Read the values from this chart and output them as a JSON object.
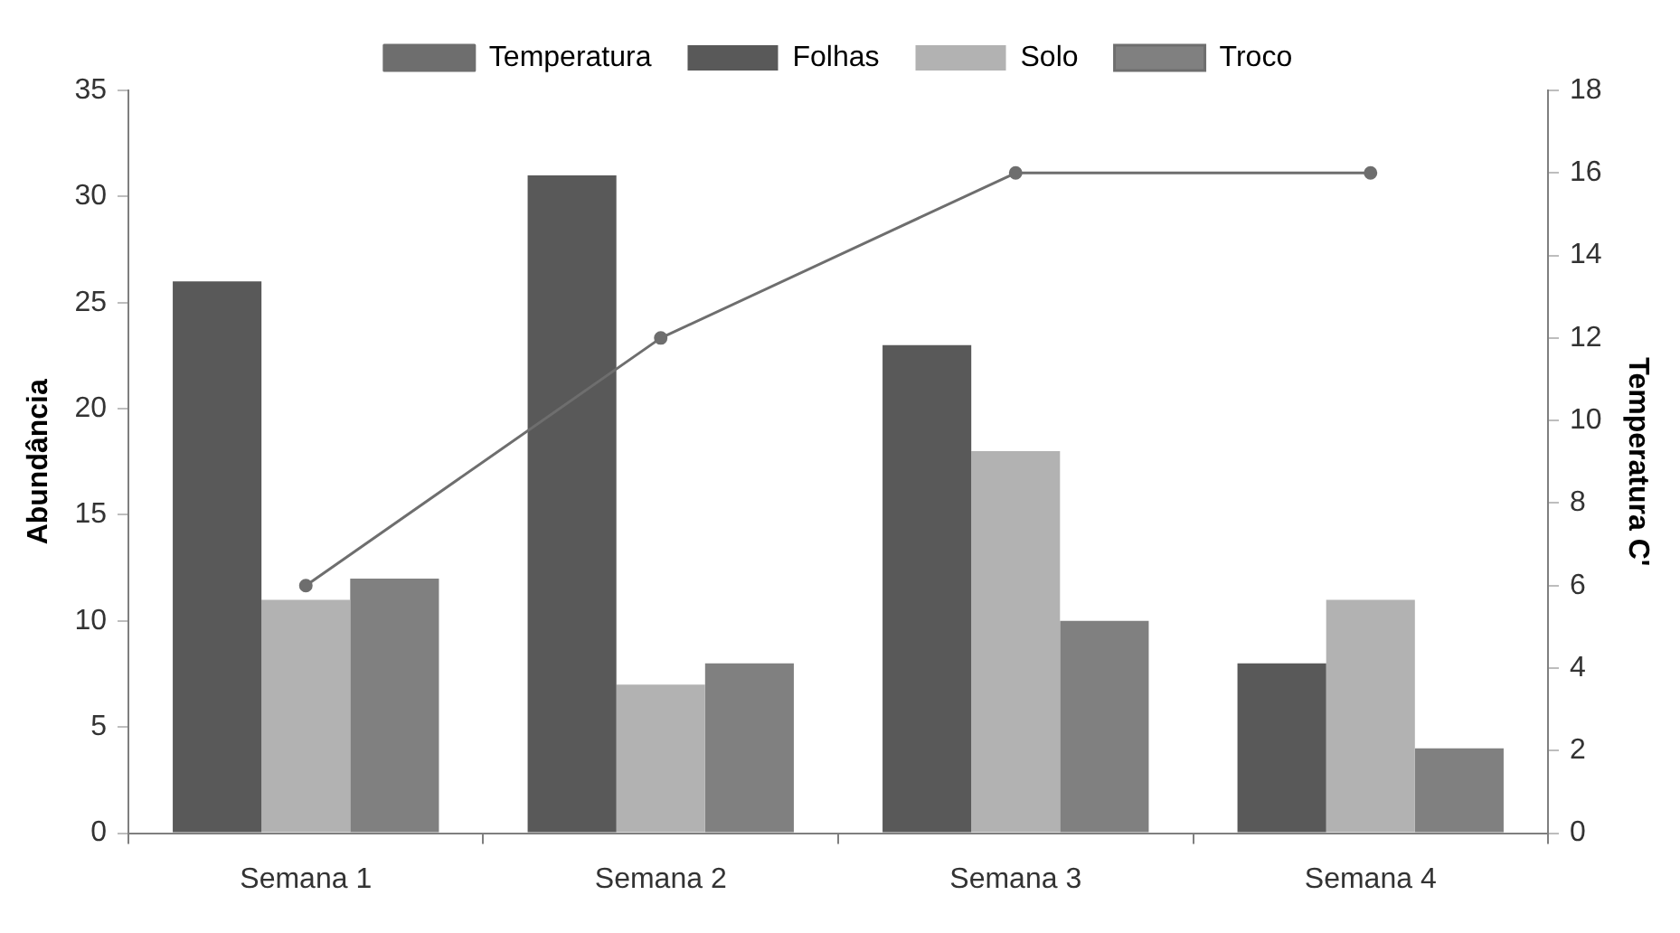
{
  "chart_data": {
    "type": "bar",
    "categories": [
      "Semana 1",
      "Semana 2",
      "Semana 3",
      "Semana 4"
    ],
    "ylabel": "Abundância",
    "y2label": "Temperatura C'",
    "ylim": [
      0,
      35
    ],
    "yticks": [
      0,
      5,
      10,
      15,
      20,
      25,
      30,
      35
    ],
    "y2lim": [
      0,
      18
    ],
    "y2ticks": [
      0,
      2,
      4,
      6,
      8,
      10,
      12,
      14,
      16,
      18
    ],
    "grid": false,
    "legend": "top",
    "marker": "circle",
    "line_style": "solid",
    "series": [
      {
        "name": "Folhas",
        "color": "#595959",
        "values": [
          26,
          31,
          23,
          8
        ]
      },
      {
        "name": "Solo",
        "color": "#b2b2b2",
        "values": [
          11,
          7,
          18,
          11
        ]
      },
      {
        "name": "Troco",
        "color": "#808080",
        "values": [
          12,
          8,
          10,
          4
        ]
      },
      {
        "name": "Temperatura",
        "type": "line",
        "axis": "y2",
        "color": "#6e6e6e",
        "values": [
          6,
          12,
          16,
          16
        ]
      }
    ]
  }
}
